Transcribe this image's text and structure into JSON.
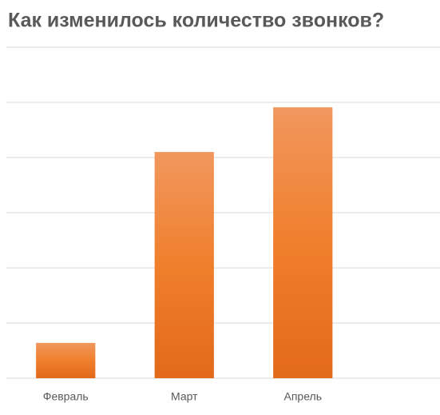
{
  "chart_data": {
    "type": "bar",
    "title": "Как изменилось количество звонков?",
    "categories": [
      "Февраль",
      "Март",
      "Апрель",
      null
    ],
    "values": [
      0.64,
      4.1,
      4.91,
      null
    ],
    "color": "#ed7d31",
    "ylim": [
      0,
      6
    ],
    "yticks": [
      0,
      1,
      2,
      3,
      4,
      5,
      6
    ],
    "grid": true
  }
}
